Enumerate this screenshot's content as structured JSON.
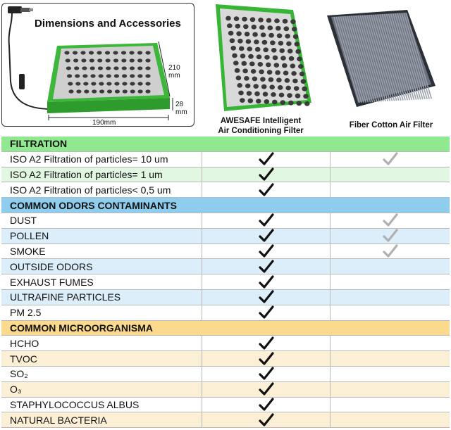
{
  "header": {
    "dimensions_title": "Dimensions and Accessories",
    "width_label": "190mm",
    "height_value": "210",
    "height_unit": "mm",
    "thickness_value": "28",
    "thickness_unit": "mm"
  },
  "products": {
    "product_a_label": "AWESAFE Intelligent Air Conditioning Filter",
    "product_a_line1": "AWESAFE Intelligent",
    "product_a_line2": "Air Conditioning Filter",
    "product_b_label": "Fiber Cotton Air Filter"
  },
  "colors": {
    "filtration": "#90e98f",
    "odors": "#8fcdee",
    "microorganisms": "#fbd98d",
    "check_product_a": "#111111",
    "check_product_b": "#b0b0b0"
  },
  "sections": [
    {
      "title": "FILTRATION",
      "theme": "green",
      "rows": [
        {
          "label": "ISO A2 Filtration of particles= 10 um",
          "a": true,
          "b": true
        },
        {
          "label": "ISO A2 Filtration of particles= 1 um",
          "a": true,
          "b": false
        },
        {
          "label": "ISO A2 Filtration of particles< 0,5 um",
          "a": true,
          "b": false
        }
      ]
    },
    {
      "title": "COMMON ODORS CONTAMINANTS",
      "theme": "blue",
      "rows": [
        {
          "label": "DUST",
          "a": true,
          "b": true
        },
        {
          "label": "POLLEN",
          "a": true,
          "b": true
        },
        {
          "label": "SMOKE",
          "a": true,
          "b": true
        },
        {
          "label": "OUTSIDE ODORS",
          "a": true,
          "b": false
        },
        {
          "label": "EXHAUST FUMES",
          "a": true,
          "b": false
        },
        {
          "label": "ULTRAFINE PARTICLES",
          "a": true,
          "b": false
        },
        {
          "label": "PM 2.5",
          "a": true,
          "b": false
        }
      ]
    },
    {
      "title": "COMMON MICROORGANISMA",
      "theme": "yellow",
      "rows": [
        {
          "label": "HCHO",
          "a": true,
          "b": false
        },
        {
          "label": "TVOC",
          "a": true,
          "b": false
        },
        {
          "label": "SO₂",
          "a": true,
          "b": false
        },
        {
          "label": "O₃",
          "a": true,
          "b": false
        },
        {
          "label": "STAPHYLOCOCCUS ALBUS",
          "a": true,
          "b": false
        },
        {
          "label": "NATURAL BACTERIA",
          "a": true,
          "b": false
        }
      ]
    }
  ]
}
